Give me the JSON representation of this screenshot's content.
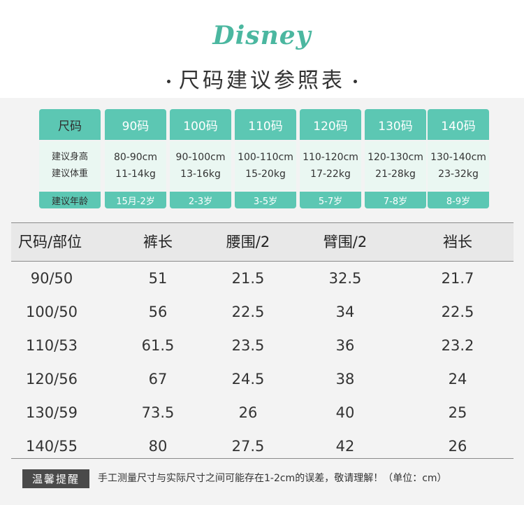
{
  "brand": {
    "logo": "Disney"
  },
  "title": "尺码建议参照表",
  "size_grid": {
    "label_column": {
      "head": "尺码",
      "mid": [
        "建议身高",
        "建议体重"
      ],
      "foot": "建议年龄"
    },
    "columns": [
      {
        "head": "90码",
        "height": "80-90cm",
        "weight": "11-14kg",
        "age": "15月-2岁"
      },
      {
        "head": "100码",
        "height": "90-100cm",
        "weight": "13-16kg",
        "age": "2-3岁"
      },
      {
        "head": "110码",
        "height": "100-110cm",
        "weight": "15-20kg",
        "age": "3-5岁"
      },
      {
        "head": "120码",
        "height": "110-120cm",
        "weight": "17-22kg",
        "age": "5-7岁"
      },
      {
        "head": "130码",
        "height": "120-130cm",
        "weight": "21-28kg",
        "age": "7-8岁"
      },
      {
        "head": "140码",
        "height": "130-140cm",
        "weight": "23-32kg",
        "age": "8-9岁"
      }
    ]
  },
  "measurements": {
    "headers": [
      "尺码/部位",
      "裤长",
      "腰围/2",
      "臂围/2",
      "裆长"
    ],
    "rows": [
      [
        "90/50",
        "51",
        "21.5",
        "32.5",
        "21.7"
      ],
      [
        "100/50",
        "56",
        "22.5",
        "34",
        "22.5"
      ],
      [
        "110/53",
        "61.5",
        "23.5",
        "36",
        "23.2"
      ],
      [
        "120/56",
        "67",
        "24.5",
        "38",
        "24"
      ],
      [
        "130/59",
        "73.5",
        "26",
        "40",
        "25"
      ],
      [
        "140/55",
        "80",
        "27.5",
        "42",
        "26"
      ]
    ]
  },
  "notice": {
    "badge": "温馨提醒",
    "text": "手工测量尺寸与实际尺寸之间可能存在1-2cm的误差，敬请理解！（单位：cm）"
  },
  "colors": {
    "accent": "#5cc7b3",
    "light": "#eaf7f2",
    "logo": "#4bb7a0",
    "badge": "#4a4a4a"
  }
}
